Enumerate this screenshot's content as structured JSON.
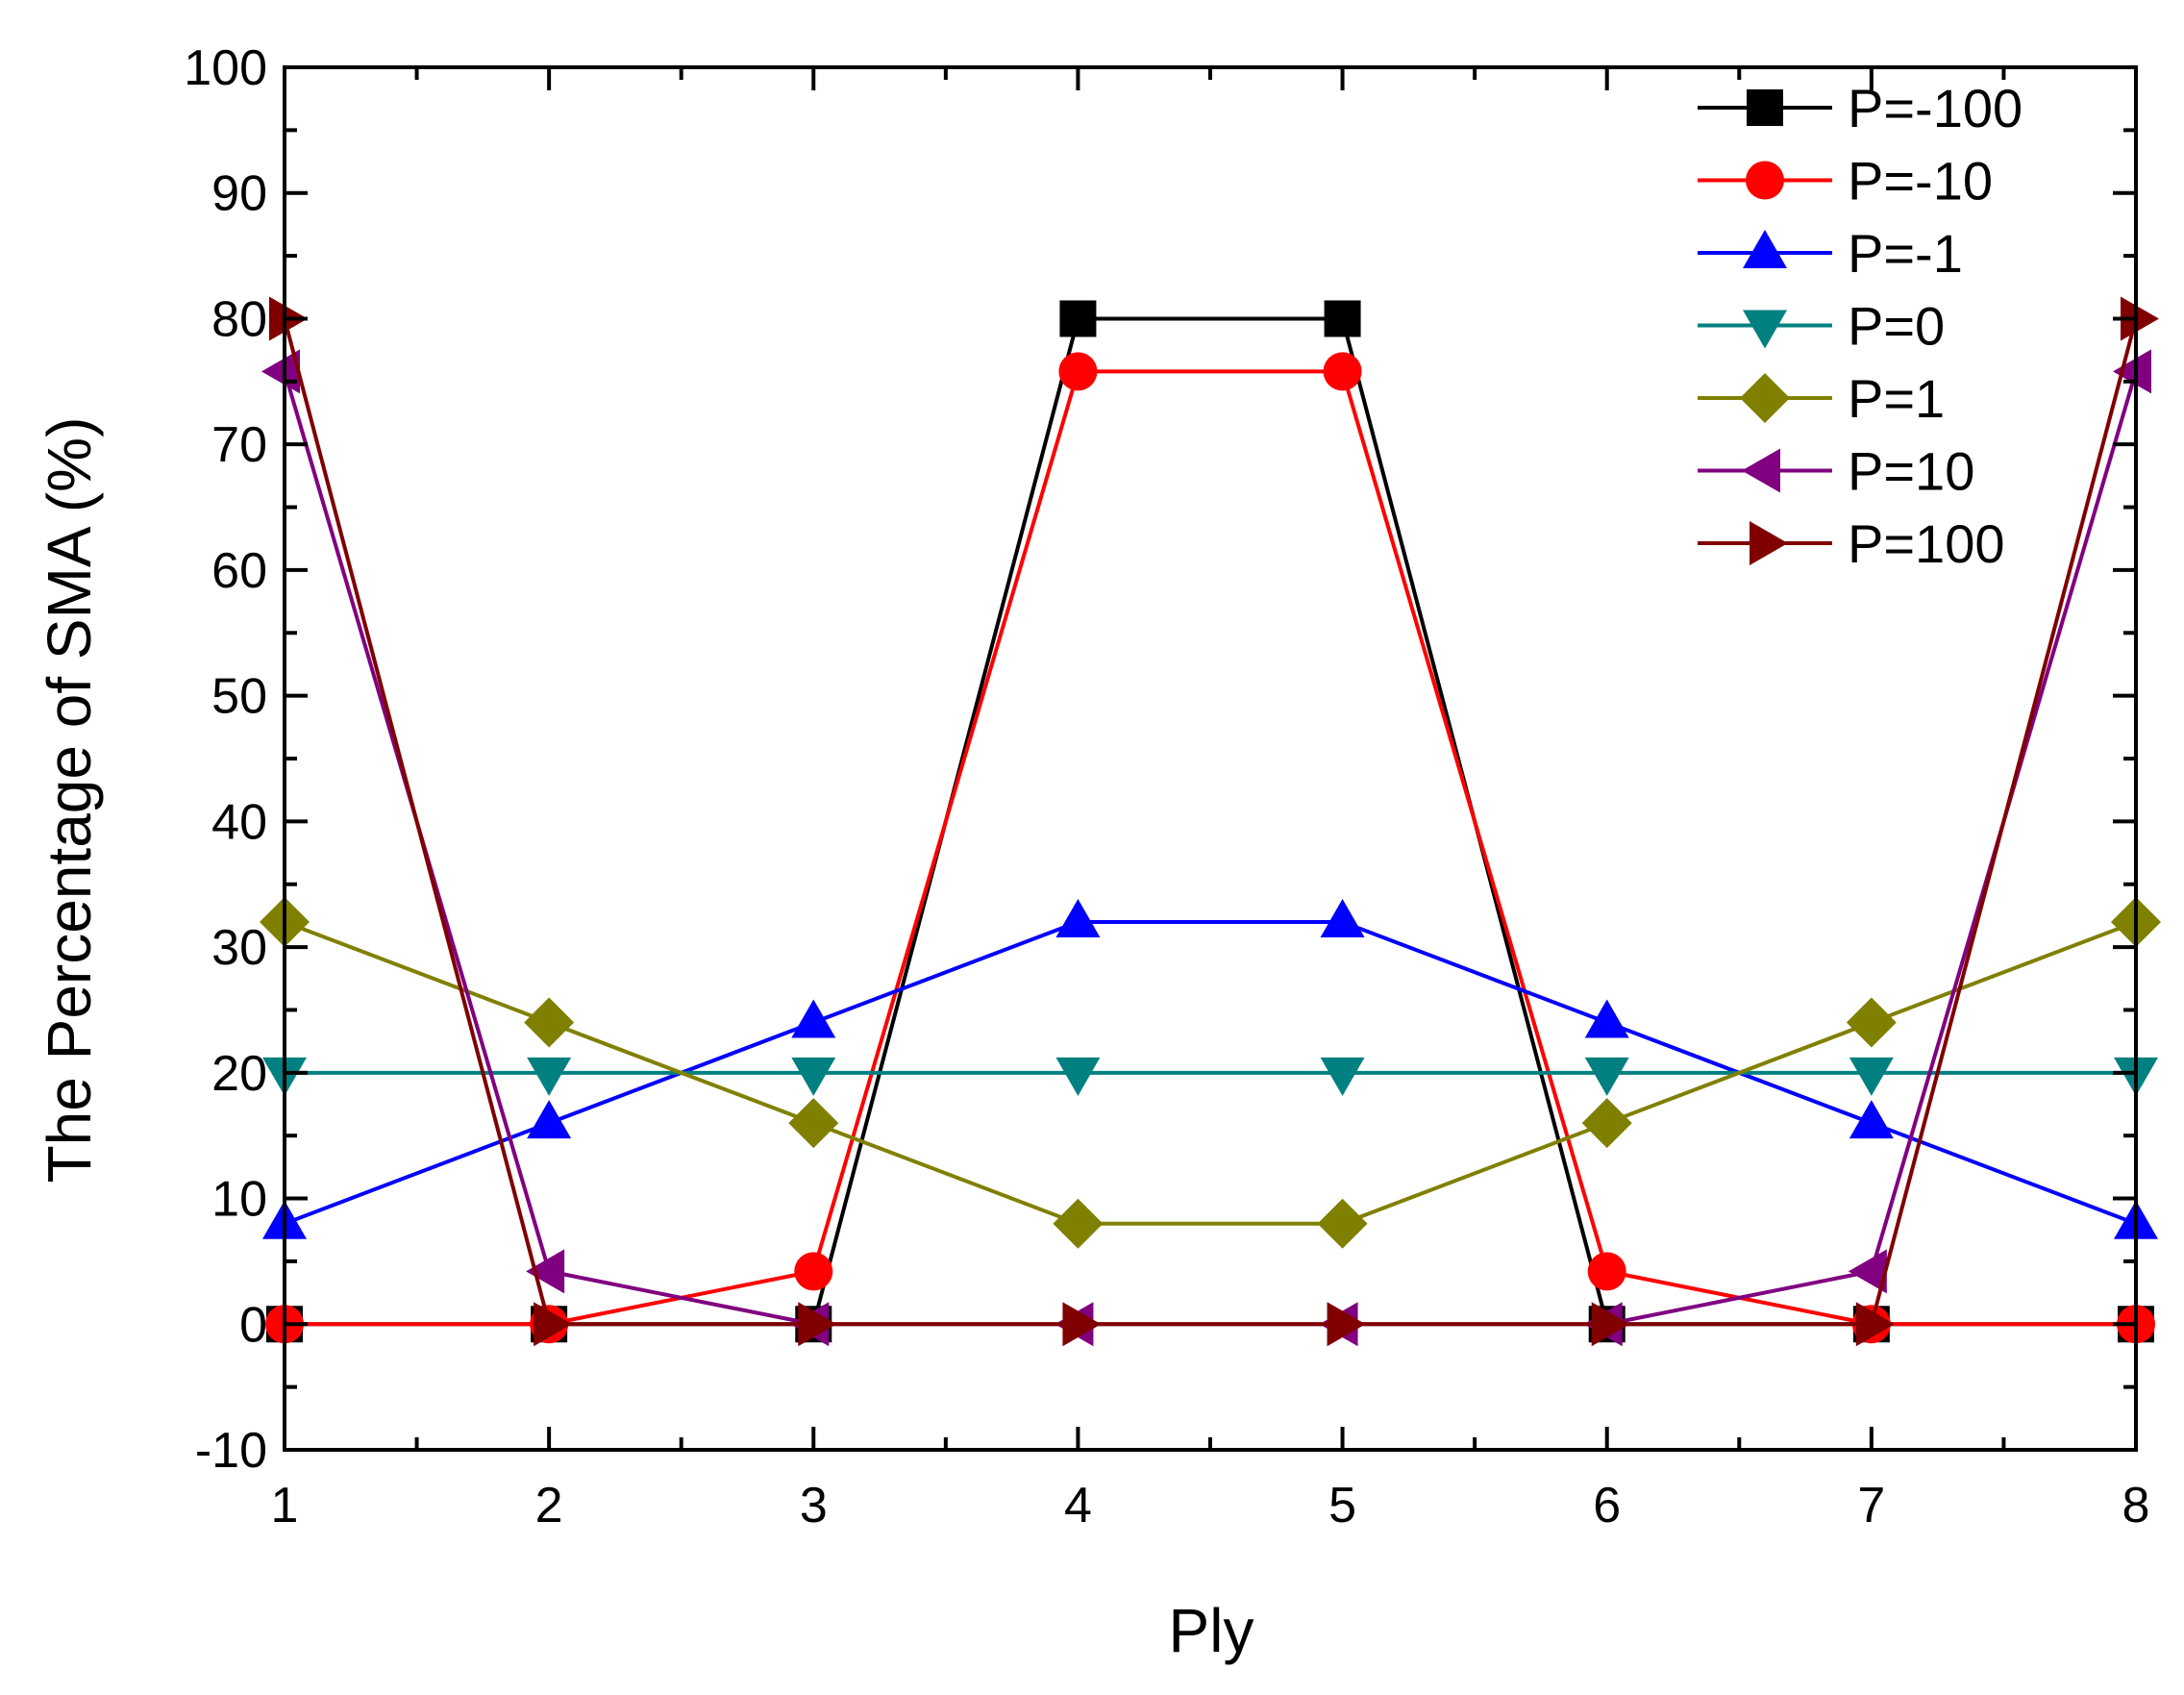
{
  "chart_data": {
    "type": "line",
    "title": "",
    "xlabel": "Ply",
    "ylabel": "The Percentage of SMA (%)",
    "x": [
      1,
      2,
      3,
      4,
      5,
      6,
      7,
      8
    ],
    "xlim": [
      1,
      8
    ],
    "ylim": [
      -10,
      100
    ],
    "xticks": [
      1,
      2,
      3,
      4,
      5,
      6,
      7,
      8
    ],
    "yticks": [
      -10,
      0,
      10,
      20,
      30,
      40,
      50,
      60,
      70,
      80,
      90,
      100
    ],
    "grid": false,
    "legend_position": "top-right",
    "series": [
      {
        "name": "P=-100",
        "color": "#000000",
        "marker": "square",
        "values": [
          0,
          0,
          0,
          80,
          80,
          0,
          0,
          0
        ]
      },
      {
        "name": "P=-10",
        "color": "#ff0000",
        "marker": "circle",
        "values": [
          0,
          0,
          4.2,
          75.8,
          75.8,
          4.2,
          0,
          0
        ]
      },
      {
        "name": "P=-1",
        "color": "#0000ff",
        "marker": "triangle-up",
        "values": [
          8,
          16,
          24,
          32,
          32,
          24,
          16,
          8
        ]
      },
      {
        "name": "P=0",
        "color": "#008080",
        "marker": "triangle-down",
        "values": [
          20,
          20,
          20,
          20,
          20,
          20,
          20,
          20
        ]
      },
      {
        "name": "P=1",
        "color": "#808000",
        "marker": "diamond",
        "values": [
          32,
          24,
          16,
          8,
          8,
          16,
          24,
          32
        ]
      },
      {
        "name": "P=10",
        "color": "#800080",
        "marker": "triangle-left",
        "values": [
          75.8,
          4.2,
          0,
          0,
          0,
          0,
          4.2,
          75.8
        ]
      },
      {
        "name": "P=100",
        "color": "#800000",
        "marker": "triangle-right",
        "values": [
          80,
          0,
          0,
          0,
          0,
          0,
          0,
          80
        ]
      }
    ]
  }
}
